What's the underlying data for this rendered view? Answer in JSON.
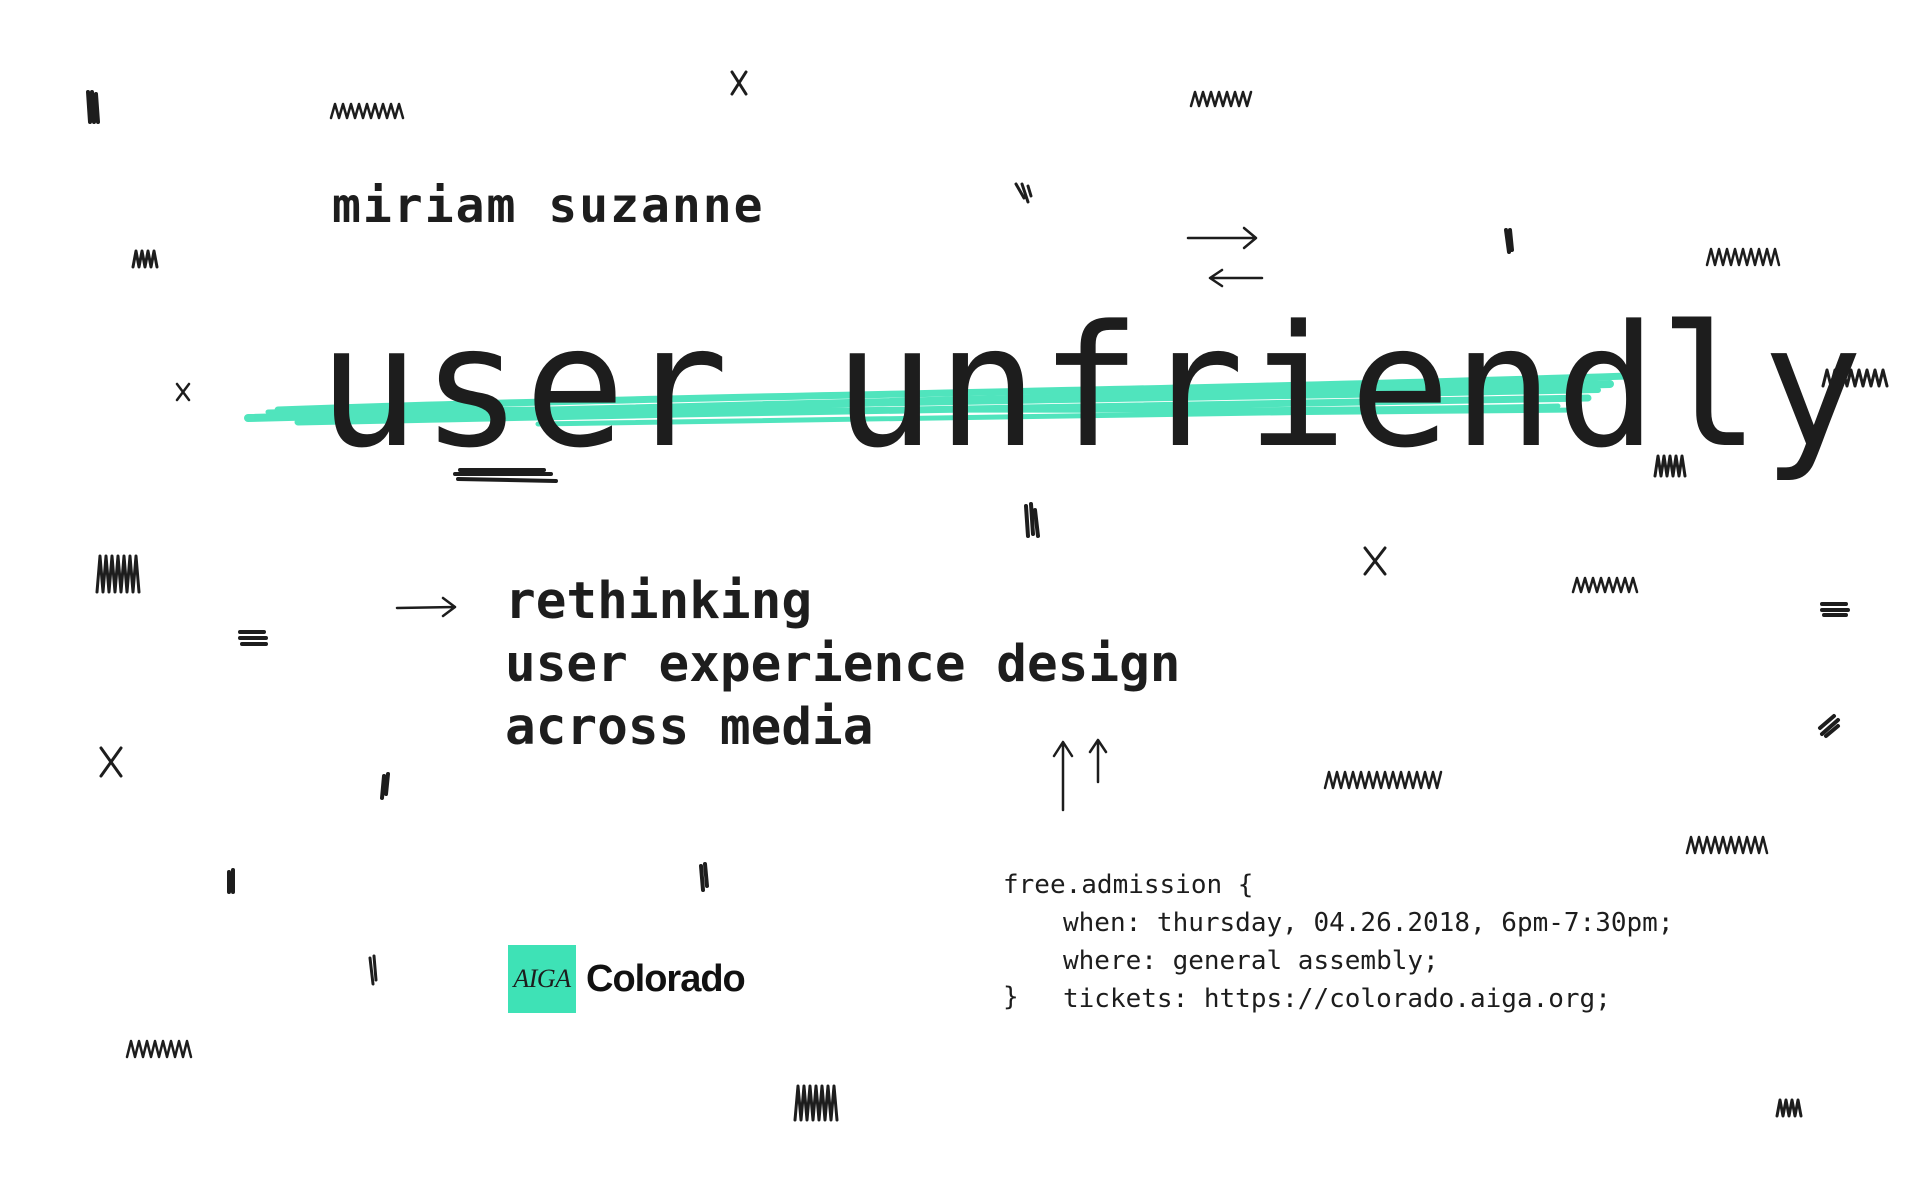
{
  "speaker": "miriam suzanne",
  "title": "user unfriendly",
  "subtitle": [
    "rethinking",
    "user experience design",
    "across media"
  ],
  "logo": {
    "mark": "AIGA",
    "chapter": "Colorado"
  },
  "info": {
    "open": "free.admission {",
    "when": "when: thursday, 04.26.2018, 6pm-7:30pm;",
    "where": "where: general assembly;",
    "tickets": "tickets: https://colorado.aiga.org;",
    "close": "}"
  },
  "colors": {
    "accent": "#3ee2b6",
    "ink": "#1d1d1d",
    "background": "#ffffff"
  },
  "icons": [
    "right-arrow-icon",
    "left-arrow-icon",
    "up-arrow-icon",
    "x-mark-icon",
    "scribble-mark"
  ]
}
